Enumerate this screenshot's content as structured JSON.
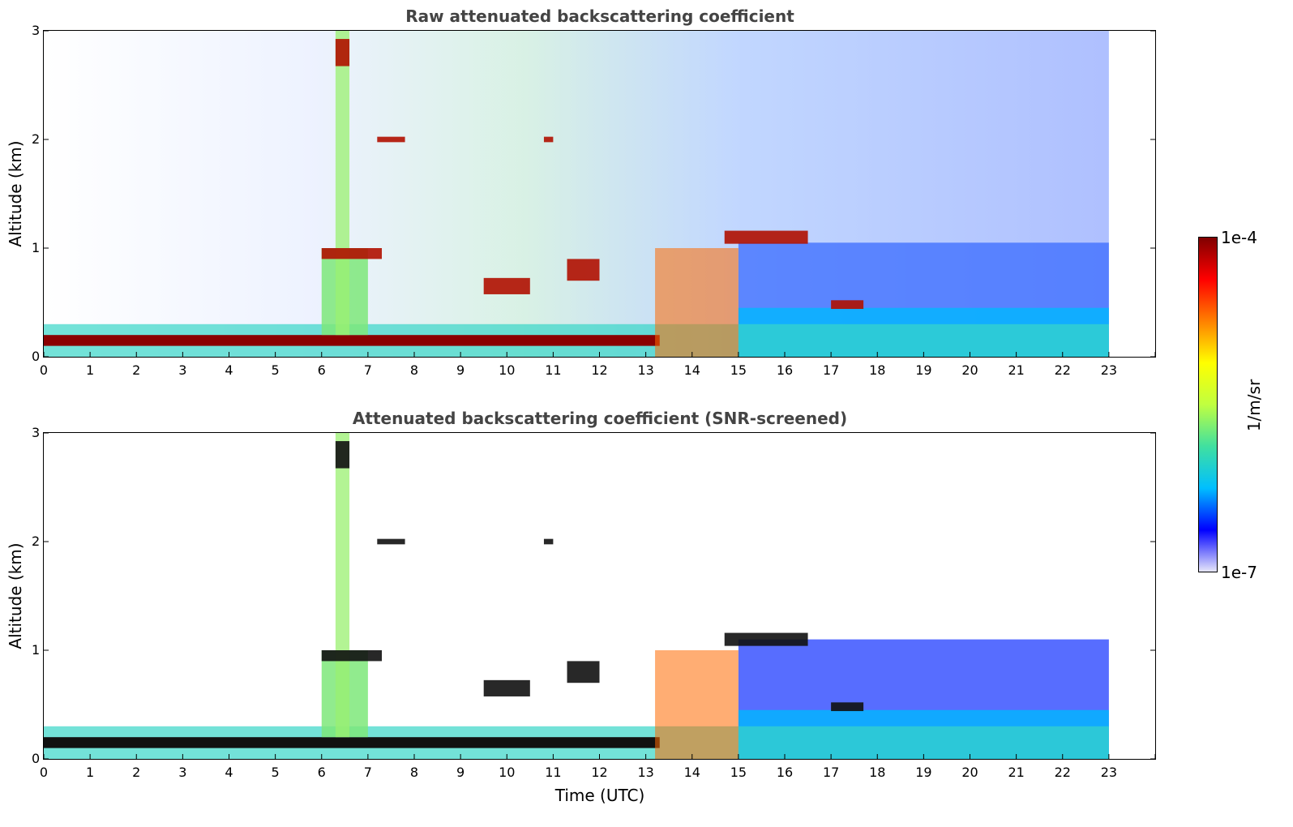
{
  "chart_data": [
    {
      "type": "heatmap",
      "title": "Raw attenuated backscattering coefficient",
      "xlabel": "",
      "ylabel": "Altitude (km)",
      "xlim": [
        0,
        24
      ],
      "ylim": [
        0,
        3
      ],
      "x_ticks": [
        "0",
        "1",
        "2",
        "3",
        "4",
        "5",
        "6",
        "7",
        "8",
        "9",
        "10",
        "11",
        "12",
        "13",
        "14",
        "15",
        "16",
        "17",
        "18",
        "19",
        "20",
        "21",
        "22",
        "23"
      ],
      "y_ticks": [
        "0",
        "1",
        "2",
        "3"
      ],
      "data_extent_hours": [
        0,
        23
      ],
      "features": {
        "surface_layer_top_km": 0.2,
        "cloud_layers": [
          {
            "t_start": 6.0,
            "t_end": 7.3,
            "alt_km": 0.95
          },
          {
            "t_start": 9.5,
            "t_end": 10.5,
            "alt_km": 0.65
          },
          {
            "t_start": 14.7,
            "t_end": 16.5,
            "alt_km": 1.1
          },
          {
            "t_start": 17.0,
            "t_end": 17.7,
            "alt_km": 0.48
          }
        ],
        "plume": {
          "t_start": 6.2,
          "t_end": 6.7,
          "alt_top_km": 3.0
        }
      }
    },
    {
      "type": "heatmap",
      "title": "Attenuated backscattering coefficient (SNR-screened)",
      "xlabel": "Time (UTC)",
      "ylabel": "Altitude (km)",
      "xlim": [
        0,
        24
      ],
      "ylim": [
        0,
        3
      ],
      "x_ticks": [
        "0",
        "1",
        "2",
        "3",
        "4",
        "5",
        "6",
        "7",
        "8",
        "9",
        "10",
        "11",
        "12",
        "13",
        "14",
        "15",
        "16",
        "17",
        "18",
        "19",
        "20",
        "21",
        "22",
        "23"
      ],
      "y_ticks": [
        "0",
        "1",
        "2",
        "3"
      ],
      "data_extent_hours": [
        0,
        23
      ],
      "features": {
        "surface_layer_top_km": 0.2,
        "boundary_layer_top_km_late": 1.0
      }
    }
  ],
  "colorbar": {
    "max_label": "1e-4",
    "min_label": "1e-7",
    "unit": "1/m/sr",
    "colors": [
      "#e6e6fa",
      "#0000ff",
      "#00bfff",
      "#40e0a0",
      "#c0ff40",
      "#ffff00",
      "#ff8000",
      "#ff0000",
      "#800000"
    ]
  }
}
